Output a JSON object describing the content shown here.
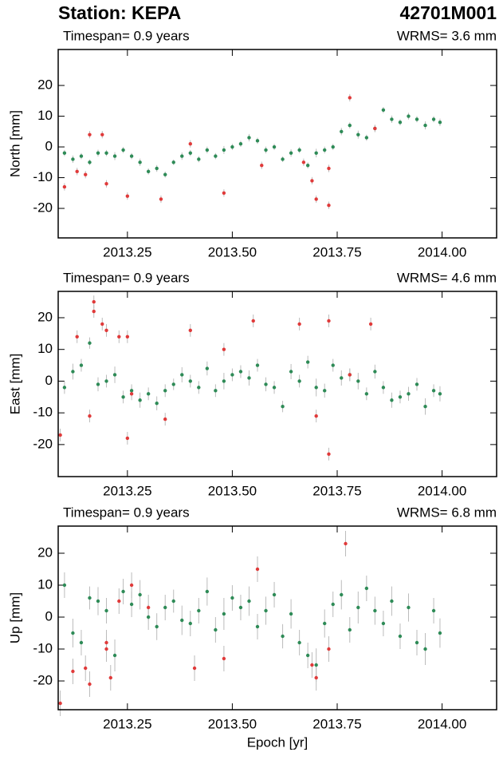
{
  "header": {
    "title": "Station: KEPA",
    "code": "42701M001"
  },
  "chart_data": [
    {
      "type": "scatter",
      "subtitle_left": "Timespan= 0.9 years",
      "subtitle_right": "WRMS= 3.6 mm",
      "ylabel": "North [mm]",
      "xlim": [
        2013.085,
        2014.13
      ],
      "ylim": [
        -29.6,
        31.7
      ],
      "xticks": [
        {
          "value": 2013.25,
          "label": "2013.25"
        },
        {
          "value": 2013.5,
          "label": "2013.50"
        },
        {
          "value": 2013.75,
          "label": "2013.75"
        },
        {
          "value": 2014,
          "label": "2014.00"
        }
      ],
      "yticks": [
        -20,
        -10,
        0,
        10,
        20
      ],
      "series": [
        {
          "color": "#2e8b57",
          "x": [
            2013.1,
            2013.12,
            2013.14,
            2013.16,
            2013.18,
            2013.2,
            2013.22,
            2013.24,
            2013.26,
            2013.28,
            2013.3,
            2013.32,
            2013.34,
            2013.36,
            2013.38,
            2013.4,
            2013.42,
            2013.44,
            2013.46,
            2013.48,
            2013.5,
            2013.52,
            2013.54,
            2013.56,
            2013.58,
            2013.6,
            2013.62,
            2013.64,
            2013.66,
            2013.68,
            2013.7,
            2013.72,
            2013.74,
            2013.76,
            2013.78,
            2013.8,
            2013.82,
            2013.84,
            2013.86,
            2013.88,
            2013.9,
            2013.92,
            2013.94,
            2013.96,
            2013.98,
            2013.995
          ],
          "values": [
            -2,
            -4,
            -3,
            -5,
            -2,
            -2,
            -3,
            -1,
            -3,
            -5,
            -8,
            -7,
            -9,
            -5,
            -3,
            -2,
            -4,
            -1,
            -3,
            -1,
            0,
            1,
            3,
            2,
            -1,
            0,
            -4,
            -2,
            -1,
            -6,
            -2,
            -1,
            0,
            5,
            7,
            4,
            3,
            6,
            12,
            9,
            8,
            10,
            9,
            7,
            9,
            8
          ],
          "errors": [
            1,
            1.2,
            1,
            0.9,
            1.1,
            1,
            1.3,
            1,
            1,
            1.2,
            1,
            1.1,
            1,
            0.9,
            1.2,
            1,
            1,
            1.1,
            1,
            1.3,
            1,
            1,
            1.2,
            1,
            1.1,
            1,
            0.9,
            1.2,
            1,
            1,
            1.4,
            1.1,
            1,
            1.2,
            1,
            1.3,
            1,
            1.1,
            1,
            1.2,
            1,
            1.1,
            1,
            1.3,
            1,
            1.2
          ]
        },
        {
          "color": "#e03a3a",
          "x": [
            2013.1,
            2013.13,
            2013.15,
            2013.16,
            2013.19,
            2013.2,
            2013.25,
            2013.33,
            2013.4,
            2013.48,
            2013.57,
            2013.67,
            2013.69,
            2013.7,
            2013.73,
            2013.73,
            2013.78,
            2013.84
          ],
          "values": [
            -13,
            -8,
            -9,
            4,
            4,
            -12,
            -16,
            -17,
            1,
            -15,
            -6,
            -5,
            -11,
            -17,
            -19,
            -7,
            16,
            6
          ],
          "errors": [
            1.2,
            1.2,
            1.2,
            1.2,
            1.2,
            1.2,
            1.2,
            1.2,
            1.2,
            1.2,
            1.2,
            1.2,
            1.2,
            1.2,
            1.2,
            1.2,
            1.2,
            1.2
          ]
        }
      ]
    },
    {
      "type": "scatter",
      "subtitle_left": "Timespan= 0.9 years",
      "subtitle_right": "WRMS= 4.6 mm",
      "ylabel": "East [mm]",
      "xlim": [
        2013.085,
        2014.13
      ],
      "ylim": [
        -30.1,
        28.3
      ],
      "xticks": [
        {
          "value": 2013.25,
          "label": "2013.25"
        },
        {
          "value": 2013.5,
          "label": "2013.50"
        },
        {
          "value": 2013.75,
          "label": "2013.75"
        },
        {
          "value": 2014,
          "label": "2014.00"
        }
      ],
      "yticks": [
        -20,
        -10,
        0,
        10,
        20
      ],
      "series": [
        {
          "color": "#2e8b57",
          "x": [
            2013.1,
            2013.12,
            2013.14,
            2013.16,
            2013.18,
            2013.2,
            2013.22,
            2013.24,
            2013.26,
            2013.28,
            2013.3,
            2013.32,
            2013.34,
            2013.36,
            2013.38,
            2013.4,
            2013.42,
            2013.44,
            2013.46,
            2013.48,
            2013.5,
            2013.52,
            2013.54,
            2013.56,
            2013.58,
            2013.6,
            2013.62,
            2013.64,
            2013.66,
            2013.68,
            2013.7,
            2013.72,
            2013.74,
            2013.76,
            2013.78,
            2013.8,
            2013.82,
            2013.84,
            2013.86,
            2013.88,
            2013.9,
            2013.92,
            2013.94,
            2013.96,
            2013.98,
            2013.995
          ],
          "values": [
            -2,
            3,
            5,
            12,
            -1,
            0,
            2,
            -5,
            -3,
            -6,
            -4,
            -7,
            -3,
            -1,
            2,
            0,
            -2,
            4,
            -3,
            0,
            2,
            3,
            1,
            5,
            -1,
            -2,
            -8,
            3,
            0,
            6,
            -2,
            -3,
            5,
            1,
            2,
            0,
            -4,
            3,
            -2,
            -6,
            -5,
            -4,
            -1,
            -8,
            -3,
            -4
          ],
          "errors": [
            2,
            2.5,
            2,
            1.8,
            2.2,
            2,
            2.6,
            2,
            2,
            2.4,
            2,
            2.2,
            2,
            1.8,
            2.4,
            2,
            2,
            2.2,
            2,
            2.6,
            2,
            2,
            2.4,
            2,
            2.2,
            2,
            1.8,
            2.4,
            2,
            2,
            2.8,
            2.2,
            2,
            2.4,
            2,
            2.6,
            2,
            2.2,
            2,
            2.4,
            2,
            2.2,
            2,
            2.6,
            2,
            2.4
          ]
        },
        {
          "color": "#e03a3a",
          "x": [
            2013.09,
            2013.13,
            2013.16,
            2013.17,
            2013.17,
            2013.19,
            2013.2,
            2013.23,
            2013.25,
            2013.25,
            2013.26,
            2013.34,
            2013.4,
            2013.48,
            2013.55,
            2013.66,
            2013.7,
            2013.73,
            2013.73,
            2013.78,
            2013.83
          ],
          "values": [
            -17,
            14,
            -11,
            22,
            25,
            18,
            16,
            14,
            14,
            -18,
            -4,
            -12,
            16,
            10,
            19,
            18,
            -11,
            19,
            -23,
            2,
            18
          ],
          "errors": [
            2,
            2,
            2,
            2,
            2,
            2,
            2,
            2,
            2,
            2,
            2,
            2,
            2,
            2,
            2,
            2,
            2,
            2,
            2,
            2,
            2
          ]
        }
      ]
    },
    {
      "type": "scatter",
      "subtitle_left": "Timespan= 0.9 years",
      "subtitle_right": "WRMS= 6.8 mm",
      "ylabel": "Up [mm]",
      "xlabel": "Epoch [yr]",
      "xlim": [
        2013.085,
        2014.13
      ],
      "ylim": [
        -29,
        28.5
      ],
      "xticks": [
        {
          "value": 2013.25,
          "label": "2013.25"
        },
        {
          "value": 2013.5,
          "label": "2013.50"
        },
        {
          "value": 2013.75,
          "label": "2013.75"
        },
        {
          "value": 2014,
          "label": "2014.00"
        }
      ],
      "yticks": [
        -20,
        -10,
        0,
        10,
        20
      ],
      "series": [
        {
          "color": "#2e8b57",
          "x": [
            2013.1,
            2013.12,
            2013.14,
            2013.16,
            2013.18,
            2013.2,
            2013.22,
            2013.24,
            2013.26,
            2013.28,
            2013.3,
            2013.32,
            2013.34,
            2013.36,
            2013.38,
            2013.4,
            2013.42,
            2013.44,
            2013.46,
            2013.48,
            2013.5,
            2013.52,
            2013.54,
            2013.56,
            2013.58,
            2013.6,
            2013.62,
            2013.64,
            2013.66,
            2013.68,
            2013.7,
            2013.72,
            2013.74,
            2013.76,
            2013.78,
            2013.8,
            2013.82,
            2013.84,
            2013.86,
            2013.88,
            2013.9,
            2013.92,
            2013.94,
            2013.96,
            2013.98,
            2013.995
          ],
          "values": [
            10,
            -5,
            -8,
            6,
            5,
            2,
            -12,
            8,
            4,
            7,
            0,
            -3,
            3,
            5,
            -1,
            -2,
            2,
            8,
            -4,
            1,
            6,
            3,
            5,
            -3,
            2,
            7,
            -6,
            1,
            -8,
            -12,
            -15,
            -2,
            4,
            7,
            -4,
            3,
            9,
            2,
            -2,
            5,
            -6,
            3,
            -8,
            -10,
            2,
            -5
          ],
          "errors": [
            4,
            4.5,
            4,
            3.6,
            4.4,
            4,
            5,
            4,
            4,
            4.6,
            4,
            4.2,
            4,
            3.6,
            4.6,
            4,
            4,
            4.4,
            4,
            5,
            4,
            4,
            4.6,
            4,
            4.4,
            4,
            3.8,
            4.6,
            4,
            4,
            5.2,
            4.4,
            4,
            4.6,
            4,
            5,
            4,
            4.4,
            4,
            4.6,
            4,
            4.4,
            4,
            5,
            4,
            4.6
          ]
        },
        {
          "color": "#e03a3a",
          "x": [
            2013.09,
            2013.12,
            2013.15,
            2013.16,
            2013.2,
            2013.2,
            2013.21,
            2013.23,
            2013.26,
            2013.3,
            2013.41,
            2013.48,
            2013.56,
            2013.69,
            2013.7,
            2013.73,
            2013.77
          ],
          "values": [
            -27,
            -17,
            -16,
            -21,
            -10,
            -8,
            -19,
            5,
            10,
            3,
            -16,
            -13,
            15,
            -15,
            -19,
            -10,
            23
          ],
          "errors": [
            4,
            4,
            4,
            4,
            4,
            4,
            4,
            4,
            4,
            4,
            4,
            4,
            4,
            4,
            4,
            4,
            4
          ]
        }
      ]
    }
  ]
}
